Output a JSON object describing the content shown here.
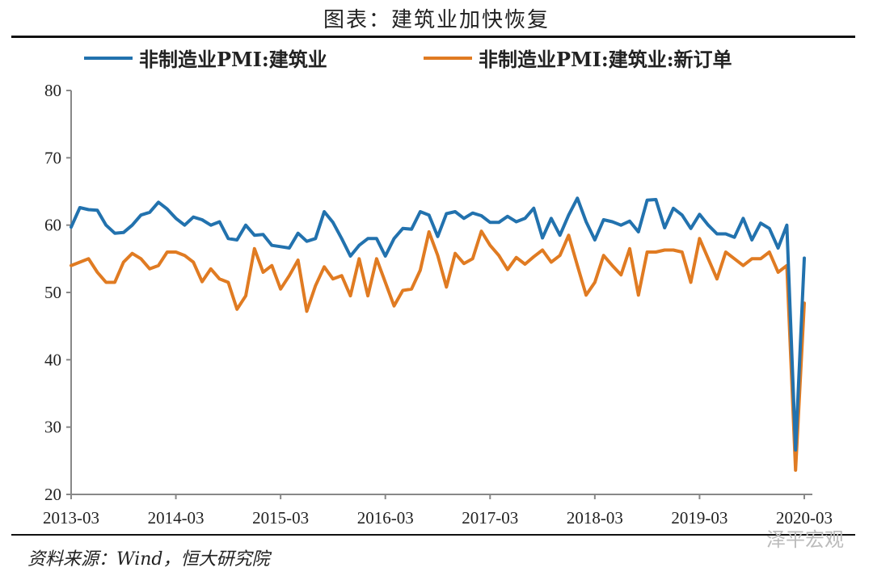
{
  "chart_data": {
    "type": "line",
    "title": "图表：建筑业加快恢复",
    "source": "资料来源：Wind，恒大研究院",
    "watermark": "泽平宏观",
    "ylim": [
      20,
      80
    ],
    "yticks": [
      "20",
      "30",
      "40",
      "50",
      "60",
      "70",
      "80"
    ],
    "xticks": [
      "2013-03",
      "2014-03",
      "2015-03",
      "2016-03",
      "2017-03",
      "2018-03",
      "2019-03",
      "2020-03"
    ],
    "x_start": "2013-03",
    "x_end": "2020-03",
    "legend_position": "top",
    "series": [
      {
        "name": "非制造业PMI:建筑业",
        "color": "#2272AE",
        "values": [
          59.7,
          62.6,
          62.3,
          62.2,
          60.0,
          58.8,
          58.9,
          60.0,
          61.5,
          61.9,
          63.4,
          62.4,
          61.0,
          60.0,
          61.2,
          60.8,
          60.0,
          60.5,
          58.0,
          57.8,
          60.0,
          58.5,
          58.6,
          57.0,
          56.8,
          56.6,
          58.8,
          57.6,
          58.0,
          62.0,
          60.4,
          58.0,
          55.4,
          57.0,
          58.0,
          58.0,
          55.4,
          58.0,
          59.5,
          59.4,
          62.0,
          61.5,
          58.3,
          61.7,
          62.0,
          61.0,
          61.8,
          61.4,
          60.4,
          60.4,
          61.3,
          60.5,
          61.0,
          62.5,
          58.1,
          61.0,
          58.5,
          61.5,
          64.0,
          60.5,
          57.8,
          60.8,
          60.5,
          60.0,
          60.6,
          59.0,
          63.7,
          63.8,
          59.6,
          62.5,
          61.5,
          59.5,
          61.6,
          60.0,
          58.7,
          58.7,
          58.2,
          61.0,
          57.8,
          60.3,
          59.5,
          56.6,
          60.0,
          26.6,
          55.1
        ]
      },
      {
        "name": "非制造业PMI:建筑业:新订单",
        "color": "#E07B22",
        "values": [
          54.0,
          54.5,
          55.0,
          53.0,
          51.5,
          51.5,
          54.5,
          55.8,
          55.0,
          53.5,
          54.0,
          56.0,
          56.0,
          55.5,
          54.5,
          51.6,
          53.5,
          52.0,
          51.5,
          47.5,
          49.5,
          56.5,
          53.0,
          54.0,
          50.5,
          52.5,
          54.8,
          47.2,
          51.0,
          53.8,
          52.0,
          52.5,
          49.5,
          55.0,
          49.5,
          55.0,
          51.5,
          48.0,
          50.3,
          50.5,
          53.3,
          59.0,
          55.5,
          50.8,
          55.8,
          54.3,
          55.0,
          59.1,
          57.0,
          55.5,
          53.4,
          55.2,
          54.2,
          55.3,
          56.3,
          54.5,
          55.5,
          58.5,
          54.0,
          49.6,
          51.5,
          55.5,
          54.0,
          52.6,
          56.5,
          49.6,
          56.0,
          56.0,
          56.3,
          56.3,
          56.0,
          51.5,
          58.0,
          55.0,
          52.0,
          56.0,
          55.0,
          54.0,
          55.0,
          55.0,
          56.0,
          53.0,
          54.0,
          23.6,
          48.4
        ]
      }
    ]
  }
}
